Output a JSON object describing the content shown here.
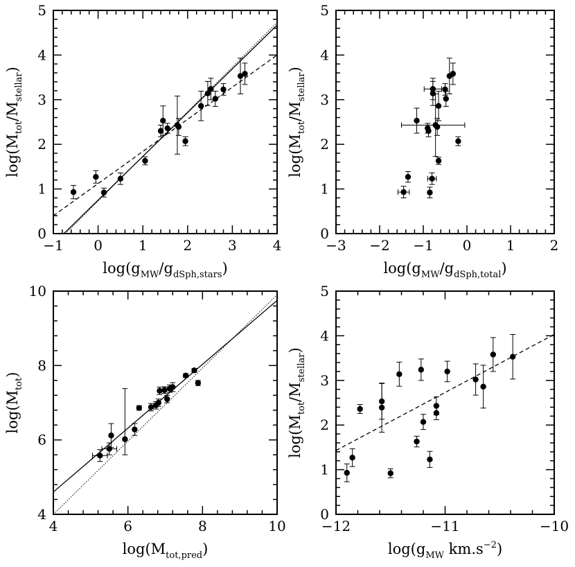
{
  "chart_data": [
    {
      "id": "a",
      "type": "scatter",
      "xlabel": {
        "base": "log(g",
        "sub": "MW",
        "mid": "/g",
        "sub2": "dSph,stars",
        "close": ")"
      },
      "ylabel": {
        "base": "log(M",
        "sub": "tot",
        "mid": "/M",
        "sub2": "stellar",
        "close": ")"
      },
      "xlim": [
        -1,
        4
      ],
      "ylim": [
        0,
        5
      ],
      "xticks": [
        -1,
        0,
        1,
        2,
        3,
        4
      ],
      "xtick_labels": [
        "−1",
        "0",
        "1",
        "2",
        "3",
        "4"
      ],
      "yticks": [
        0,
        1,
        2,
        3,
        4,
        5
      ],
      "ytick_labels": [
        "0",
        "1",
        "2",
        "3",
        "4",
        "5"
      ],
      "points": [
        {
          "x": -0.55,
          "y": 0.93,
          "ylo": 0.78,
          "yhi": 1.08
        },
        {
          "x": -0.05,
          "y": 1.27,
          "ylo": 1.13,
          "yhi": 1.41
        },
        {
          "x": 0.13,
          "y": 0.92,
          "ylo": 0.82,
          "yhi": 1.02
        },
        {
          "x": 0.5,
          "y": 1.23,
          "ylo": 1.1,
          "yhi": 1.36
        },
        {
          "x": 1.05,
          "y": 1.63,
          "ylo": 1.54,
          "yhi": 1.72
        },
        {
          "x": 1.4,
          "y": 2.3,
          "ylo": 2.17,
          "yhi": 2.43
        },
        {
          "x": 1.45,
          "y": 2.53,
          "ylo": 2.2,
          "yhi": 2.86
        },
        {
          "x": 1.55,
          "y": 2.36,
          "ylo": 2.25,
          "yhi": 2.47
        },
        {
          "x": 1.77,
          "y": 2.43,
          "ylo": 1.78,
          "yhi": 3.08
        },
        {
          "x": 1.8,
          "y": 2.39,
          "ylo": 2.2,
          "yhi": 2.58
        },
        {
          "x": 1.95,
          "y": 2.07,
          "ylo": 1.97,
          "yhi": 2.17
        },
        {
          "x": 2.3,
          "y": 2.86,
          "ylo": 2.53,
          "yhi": 3.19
        },
        {
          "x": 2.45,
          "y": 3.14,
          "ylo": 2.87,
          "yhi": 3.41
        },
        {
          "x": 2.52,
          "y": 3.24,
          "ylo": 3.0,
          "yhi": 3.48
        },
        {
          "x": 2.62,
          "y": 3.02,
          "ylo": 2.85,
          "yhi": 3.19
        },
        {
          "x": 2.8,
          "y": 3.23,
          "ylo": 3.1,
          "yhi": 3.36
        },
        {
          "x": 3.18,
          "y": 3.53,
          "ylo": 3.13,
          "yhi": 3.93
        },
        {
          "x": 3.28,
          "y": 3.58,
          "ylo": 3.34,
          "yhi": 3.82
        }
      ],
      "lines": [
        {
          "style": "solid",
          "x": [
            -1,
            4
          ],
          "y": [
            -0.23,
            4.67
          ]
        },
        {
          "style": "dashed",
          "x": [
            -1,
            4
          ],
          "y": [
            0.4,
            4.0
          ]
        },
        {
          "style": "dotted",
          "x": [
            -1,
            4
          ],
          "y": [
            -0.27,
            4.73
          ]
        }
      ]
    },
    {
      "id": "b",
      "type": "scatter",
      "xlabel": {
        "base": "log(g",
        "sub": "MW",
        "mid": "/g",
        "sub2": "dSph,total",
        "close": ")"
      },
      "ylabel": {
        "base": "log(M",
        "sub": "tot",
        "mid": "/M",
        "sub2": "stellar",
        "close": ")"
      },
      "xlim": [
        -3,
        2
      ],
      "ylim": [
        0,
        5
      ],
      "xticks": [
        -3,
        -2,
        -1,
        0,
        1,
        2
      ],
      "xtick_labels": [
        "−3",
        "−2",
        "−1",
        "0",
        "1",
        "2"
      ],
      "yticks": [
        0,
        1,
        2,
        3,
        4,
        5
      ],
      "ytick_labels": [
        "0",
        "1",
        "2",
        "3",
        "4",
        "5"
      ],
      "points": [
        {
          "x": -1.45,
          "y": 0.93,
          "ylo": 0.8,
          "yhi": 1.06,
          "xlo": -1.58,
          "xhi": -1.32
        },
        {
          "x": -1.35,
          "y": 1.27,
          "ylo": 1.15,
          "yhi": 1.39
        },
        {
          "x": -0.85,
          "y": 0.92,
          "ylo": 0.8,
          "yhi": 1.04
        },
        {
          "x": -0.8,
          "y": 1.23,
          "ylo": 1.1,
          "yhi": 1.36,
          "xlo": -0.9,
          "xhi": -0.7
        },
        {
          "x": -0.65,
          "y": 1.63,
          "ylo": 1.55,
          "yhi": 1.71
        },
        {
          "x": -0.88,
          "y": 2.3,
          "ylo": 2.17,
          "yhi": 2.43
        },
        {
          "x": -1.15,
          "y": 2.53,
          "ylo": 2.25,
          "yhi": 2.81
        },
        {
          "x": -0.9,
          "y": 2.36,
          "ylo": 2.25,
          "yhi": 2.47
        },
        {
          "x": -0.72,
          "y": 2.43,
          "ylo": 1.73,
          "yhi": 3.13,
          "xlo": -1.5,
          "xhi": -0.05
        },
        {
          "x": -0.68,
          "y": 2.39,
          "ylo": 2.2,
          "yhi": 2.58
        },
        {
          "x": -0.2,
          "y": 2.07,
          "ylo": 1.97,
          "yhi": 2.17
        },
        {
          "x": -0.65,
          "y": 2.86,
          "ylo": 2.53,
          "yhi": 3.19
        },
        {
          "x": -0.78,
          "y": 3.14,
          "ylo": 2.87,
          "yhi": 3.41
        },
        {
          "x": -0.78,
          "y": 3.24,
          "ylo": 3.0,
          "yhi": 3.48,
          "xlo": -0.98,
          "xhi": -0.58
        },
        {
          "x": -0.48,
          "y": 3.02,
          "ylo": 2.85,
          "yhi": 3.19
        },
        {
          "x": -0.5,
          "y": 3.23,
          "ylo": 3.1,
          "yhi": 3.36
        },
        {
          "x": -0.4,
          "y": 3.53,
          "ylo": 3.13,
          "yhi": 3.93
        },
        {
          "x": -0.32,
          "y": 3.58,
          "ylo": 3.34,
          "yhi": 3.82
        }
      ],
      "lines": []
    },
    {
      "id": "c",
      "type": "scatter",
      "xlabel": {
        "base": "log(M",
        "sub": "tot,pred",
        "mid": "",
        "sub2": "",
        "close": ")"
      },
      "ylabel": {
        "base": "log(M",
        "sub": "tot",
        "mid": "",
        "sub2": "",
        "close": ")"
      },
      "xlim": [
        4,
        10
      ],
      "ylim": [
        4,
        10
      ],
      "xticks": [
        4,
        6,
        8,
        10
      ],
      "xtick_labels": [
        "4",
        "6",
        "8",
        "10"
      ],
      "yticks": [
        4,
        6,
        8,
        10
      ],
      "ytick_labels": [
        "4",
        "6",
        "8",
        "10"
      ],
      "points": [
        {
          "x": 5.25,
          "y": 5.58,
          "ylo": 5.42,
          "yhi": 5.74,
          "xlo": 5.05,
          "xhi": 5.45
        },
        {
          "x": 5.5,
          "y": 5.76,
          "ylo": 5.6,
          "yhi": 5.92,
          "xlo": 5.3,
          "xhi": 5.7
        },
        {
          "x": 5.55,
          "y": 6.12,
          "ylo": 5.8,
          "yhi": 6.44
        },
        {
          "x": 5.92,
          "y": 6.02,
          "ylo": 5.6,
          "yhi": 7.38
        },
        {
          "x": 6.18,
          "y": 6.28,
          "ylo": 6.12,
          "yhi": 6.44
        },
        {
          "x": 6.3,
          "y": 6.86,
          "ylo": 6.8,
          "yhi": 6.92
        },
        {
          "x": 6.62,
          "y": 6.88,
          "ylo": 6.78,
          "yhi": 6.98
        },
        {
          "x": 6.75,
          "y": 6.93,
          "ylo": 6.83,
          "yhi": 7.03
        },
        {
          "x": 6.82,
          "y": 7.0,
          "ylo": 6.9,
          "yhi": 7.1
        },
        {
          "x": 6.85,
          "y": 7.32,
          "ylo": 7.22,
          "yhi": 7.42
        },
        {
          "x": 6.98,
          "y": 7.34,
          "ylo": 7.25,
          "yhi": 7.43
        },
        {
          "x": 7.05,
          "y": 7.1,
          "ylo": 7.0,
          "yhi": 7.2
        },
        {
          "x": 7.12,
          "y": 7.38,
          "ylo": 7.28,
          "yhi": 7.48
        },
        {
          "x": 7.2,
          "y": 7.42,
          "ylo": 7.3,
          "yhi": 7.54
        },
        {
          "x": 7.55,
          "y": 7.73,
          "ylo": 7.68,
          "yhi": 7.78
        },
        {
          "x": 7.78,
          "y": 7.87,
          "ylo": 7.82,
          "yhi": 7.92
        },
        {
          "x": 7.88,
          "y": 7.53,
          "ylo": 7.46,
          "yhi": 7.6
        }
      ],
      "lines": [
        {
          "style": "solid",
          "x": [
            4,
            10
          ],
          "y": [
            4.6,
            9.75
          ]
        },
        {
          "style": "dotted",
          "x": [
            4,
            10
          ],
          "y": [
            4.0,
            9.9
          ]
        }
      ]
    },
    {
      "id": "d",
      "type": "scatter",
      "xlabel": {
        "base": "log(g",
        "sub": "MW",
        "mid": " km.s",
        "sup": "−2",
        "sub2": "",
        "close": ")"
      },
      "ylabel": {
        "base": "log(M",
        "sub": "tot",
        "mid": "/M",
        "sub2": "stellar",
        "close": ")"
      },
      "xlim": [
        -12,
        -10
      ],
      "ylim": [
        0,
        5
      ],
      "xticks": [
        -12,
        -11,
        -10
      ],
      "xtick_labels": [
        "−12",
        "−11",
        "−10"
      ],
      "yticks": [
        0,
        1,
        2,
        3,
        4,
        5
      ],
      "ytick_labels": [
        "0",
        "1",
        "2",
        "3",
        "4",
        "5"
      ],
      "points": [
        {
          "x": -11.9,
          "y": 0.93,
          "ylo": 0.73,
          "yhi": 1.13
        },
        {
          "x": -11.85,
          "y": 1.27,
          "ylo": 1.07,
          "yhi": 1.47
        },
        {
          "x": -11.78,
          "y": 2.36,
          "ylo": 2.26,
          "yhi": 2.46
        },
        {
          "x": -11.58,
          "y": 2.53,
          "ylo": 2.13,
          "yhi": 2.93
        },
        {
          "x": -11.58,
          "y": 2.39,
          "ylo": 1.84,
          "yhi": 2.94
        },
        {
          "x": -11.5,
          "y": 0.92,
          "ylo": 0.82,
          "yhi": 1.02
        },
        {
          "x": -11.42,
          "y": 3.14,
          "ylo": 2.87,
          "yhi": 3.41
        },
        {
          "x": -11.26,
          "y": 1.63,
          "ylo": 1.51,
          "yhi": 1.75
        },
        {
          "x": -11.22,
          "y": 3.24,
          "ylo": 3.0,
          "yhi": 3.48
        },
        {
          "x": -11.2,
          "y": 2.07,
          "ylo": 1.9,
          "yhi": 2.24
        },
        {
          "x": -11.14,
          "y": 1.23,
          "ylo": 1.05,
          "yhi": 1.41
        },
        {
          "x": -11.08,
          "y": 2.43,
          "ylo": 2.23,
          "yhi": 2.63
        },
        {
          "x": -11.08,
          "y": 2.27,
          "ylo": 2.12,
          "yhi": 2.42
        },
        {
          "x": -10.98,
          "y": 3.2,
          "ylo": 2.97,
          "yhi": 3.43
        },
        {
          "x": -10.72,
          "y": 3.02,
          "ylo": 2.67,
          "yhi": 3.37
        },
        {
          "x": -10.65,
          "y": 2.86,
          "ylo": 2.38,
          "yhi": 3.34
        },
        {
          "x": -10.56,
          "y": 3.58,
          "ylo": 3.2,
          "yhi": 3.96
        },
        {
          "x": -10.38,
          "y": 3.53,
          "ylo": 3.03,
          "yhi": 4.03
        }
      ],
      "lines": [
        {
          "style": "dashed",
          "x": [
            -12,
            -10
          ],
          "y": [
            1.43,
            4.03
          ]
        }
      ]
    }
  ]
}
